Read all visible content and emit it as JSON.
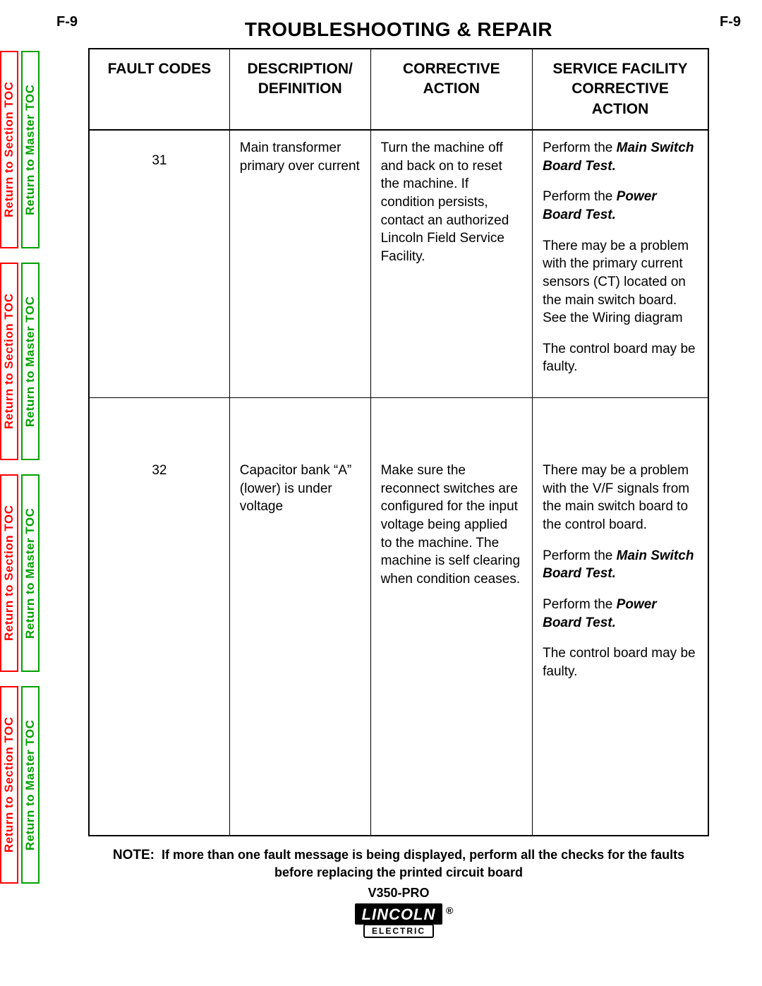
{
  "page_id_left": "F-9",
  "page_id_right": "F-9",
  "title": "TROUBLESHOOTING & REPAIR",
  "side_tabs": {
    "section": "Return to Section TOC",
    "master": "Return to Master TOC"
  },
  "headers": {
    "col1": "FAULT CODES",
    "col2_a": "DESCRIPTION/",
    "col2_b": "DEFINITION",
    "col3_a": "CORRECTIVE",
    "col3_b": "ACTION",
    "col4_a": "SERVICE FACILITY",
    "col4_b": "CORRECTIVE",
    "col4_c": "ACTION"
  },
  "rows": [
    {
      "code": "31",
      "desc": "Main transformer primary over current",
      "corr": "Turn the machine off and back on to reset the machine.  If condition persists, contact an authorized Lincoln Field Service Facility.",
      "svc": {
        "p1a": "Perform the ",
        "p1b": "Main Switch Board Test.",
        "p2a": "Perform the ",
        "p2b": "Power Board Test.",
        "p3": "There may be a problem with the primary current sensors (CT) located on the main switch board. See the Wiring diagram",
        "p4": "The control board may be faulty."
      }
    },
    {
      "code": "32",
      "desc": "Capacitor bank “A” (lower) is under voltage",
      "corr": "Make sure the reconnect switches are configured for the input voltage being applied to the machine.  The machine is self clearing when condition ceases.",
      "svc": {
        "p1": "There may be a problem with the V/F signals from the main switch board to the control board.",
        "p2a": "Perform the ",
        "p2b": "Main Switch Board Test.",
        "p3a": "Perform the ",
        "p3b": "Power Board Test.",
        "p4": "The control board may be faulty."
      }
    }
  ],
  "note_lead": "NOTE:",
  "note_body_1": "If more than one fault message is being displayed, perform all the checks for the faults",
  "note_body_2": "before replacing the printed circuit board",
  "model": "V350-PRO",
  "logo_top": "LINCOLN",
  "logo_bottom": "ELECTRIC",
  "colors": {
    "red": "#ff0000",
    "green": "#00a000",
    "black": "#000000",
    "bg": "#ffffff"
  }
}
